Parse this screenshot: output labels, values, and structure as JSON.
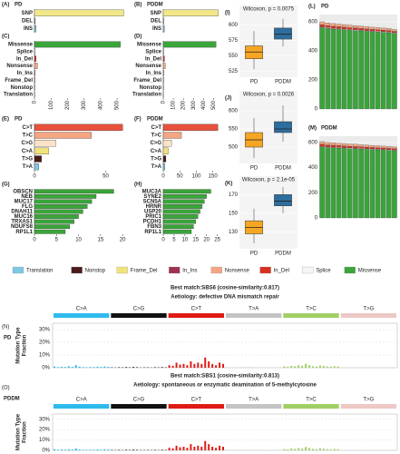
{
  "chart_data": [
    {
      "type": "hbar",
      "panel": "(A)",
      "title": "PD",
      "categories": [
        "SNP",
        "DEL",
        "INS"
      ],
      "values": [
        540,
        3,
        10
      ],
      "colors": [
        "#f2e88a",
        "#4a1c1c",
        "#7ec8e3"
      ],
      "xlim": [
        0,
        560
      ]
    },
    {
      "type": "hbar",
      "panel": "(B)",
      "title": "PDDM",
      "categories": [
        "SNP",
        "DEL",
        "INS"
      ],
      "values": [
        548,
        4,
        12
      ],
      "colors": [
        "#f2e88a",
        "#4a1c1c",
        "#7ec8e3"
      ],
      "xlim": [
        0,
        560
      ]
    },
    {
      "type": "hbar",
      "panel": "(C)",
      "categories": [
        "Missense",
        "Splice",
        "In_Del",
        "Nonsense",
        "In_Ins",
        "Frame_Del",
        "Nonstop",
        "Translation"
      ],
      "values": [
        520,
        5,
        10,
        18,
        3,
        4,
        2,
        1
      ],
      "colors": [
        "#3aa53a",
        "#f5f5f5",
        "#d7301f",
        "#f4a582",
        "#a03050",
        "#f2e27a",
        "#4a1c1c",
        "#7ec8e3"
      ],
      "xlim": [
        0,
        560
      ],
      "xticks": [
        0,
        100,
        200,
        300,
        400,
        500
      ]
    },
    {
      "type": "hbar",
      "panel": "(D)",
      "categories": [
        "Missense",
        "Splice",
        "In_Del",
        "Nonsense",
        "In_Ins",
        "Frame_Del",
        "Nonstop",
        "Translation"
      ],
      "values": [
        525,
        6,
        12,
        20,
        4,
        5,
        2,
        1
      ],
      "colors": [
        "#3aa53a",
        "#f5f5f5",
        "#d7301f",
        "#f4a582",
        "#a03050",
        "#f2e27a",
        "#4a1c1c",
        "#7ec8e3"
      ],
      "xlim": [
        0,
        560
      ],
      "xticks": [
        0,
        100,
        200,
        300,
        400,
        500
      ]
    },
    {
      "type": "hbar",
      "panel": "(E)",
      "title": "PD",
      "categories": [
        "C>T",
        "T>C",
        "C>G",
        "C>A",
        "T>G",
        "T>A"
      ],
      "values": [
        62,
        40,
        15,
        10,
        5,
        3
      ],
      "colors": [
        "#e8513c",
        "#f4a582",
        "#fbe3c8",
        "#f2e27a",
        "#4a1c1c",
        "#7ec8e3"
      ],
      "xlim": [
        0,
        65
      ],
      "xticks": [
        0,
        50
      ]
    },
    {
      "type": "hbar",
      "panel": "(F)",
      "title": "PDDM",
      "categories": [
        "C>T",
        "T>C",
        "C>G",
        "C>A",
        "T>G",
        "T>A"
      ],
      "values": [
        165,
        55,
        25,
        15,
        8,
        5
      ],
      "colors": [
        "#e8513c",
        "#f4a582",
        "#fbe3c8",
        "#f2e27a",
        "#4a1c1c",
        "#7ec8e3"
      ],
      "xlim": [
        0,
        170
      ],
      "xticks": [
        0,
        50,
        100,
        150
      ]
    },
    {
      "type": "hbar",
      "panel": "(G)",
      "categories": [
        "OBSCN",
        "NEB",
        "MUC17",
        "FLG",
        "DNAH11",
        "MUC16",
        "TRXAS1",
        "NDUFS8",
        "RP1L1"
      ],
      "values": [
        18,
        14,
        13,
        12,
        11,
        10,
        9,
        8,
        7
      ],
      "colors": [
        "#3aa53a",
        "#3aa53a",
        "#3aa53a",
        "#3aa53a",
        "#3aa53a",
        "#3aa53a",
        "#3aa53a",
        "#3aa53a",
        "#3aa53a"
      ],
      "xlim": [
        0,
        21
      ],
      "xticks": [
        0,
        5,
        10,
        15,
        20
      ]
    },
    {
      "type": "hbar",
      "panel": "(H)",
      "categories": [
        "MUC3A",
        "SYNE2",
        "SCN5A",
        "HRNR",
        "USP20",
        "PRIC1",
        "PCDH1",
        "FBN3",
        "RP1L1"
      ],
      "values": [
        22,
        20,
        19,
        18,
        17,
        16,
        15,
        14,
        13
      ],
      "colors": [
        "#3aa53a",
        "#3aa53a",
        "#3aa53a",
        "#3aa53a",
        "#3aa53a",
        "#3aa53a",
        "#3aa53a",
        "#3aa53a",
        "#3aa53a"
      ],
      "xlim": [
        0,
        26
      ],
      "xticks": [
        0,
        5,
        10,
        15,
        20,
        25
      ]
    },
    {
      "type": "box",
      "panel": "(I)",
      "annotation": "Wilcoxon, p = 0.0075",
      "groups": [
        "PD",
        "PDDM"
      ],
      "colors": [
        "#f6a623",
        "#2e6e9e"
      ],
      "boxes": [
        {
          "min": 528,
          "q1": 545,
          "median": 556,
          "q3": 566,
          "max": 590
        },
        {
          "min": 565,
          "q1": 577,
          "median": 585,
          "q3": 595,
          "max": 610
        }
      ],
      "ylim": [
        515,
        620
      ],
      "yticks": [
        525,
        550,
        575,
        600
      ]
    },
    {
      "type": "box",
      "panel": "(J)",
      "annotation": "Wilcoxon, p = 0.0026",
      "groups": [
        "PD",
        "PDDM"
      ],
      "colors": [
        "#f6a623",
        "#2e6e9e"
      ],
      "boxes": [
        {
          "min": 470,
          "q1": 500,
          "median": 520,
          "q3": 540,
          "max": 580
        },
        {
          "min": 515,
          "q1": 540,
          "median": 550,
          "q3": 570,
          "max": 615
        }
      ],
      "ylim": [
        455,
        635
      ],
      "yticks": [
        500,
        550,
        600
      ]
    },
    {
      "type": "box",
      "panel": "(K)",
      "annotation": "Wilcoxon, p = 2.1e-05",
      "groups": [
        "PD",
        "PDDM"
      ],
      "colors": [
        "#f6a623",
        "#2e6e9e"
      ],
      "boxes": [
        {
          "min": 118,
          "q1": 128,
          "median": 135,
          "q3": 142,
          "max": 155
        },
        {
          "min": 150,
          "q1": 158,
          "median": 163,
          "q3": 170,
          "max": 178
        }
      ],
      "ylim": [
        112,
        182
      ],
      "yticks": [
        130,
        150,
        170
      ]
    },
    {
      "type": "stacked",
      "panel": "(L)",
      "title": "PD",
      "ylim": [
        0,
        650
      ],
      "yticks": [
        0,
        200,
        400,
        600
      ],
      "series": [
        {
          "name": "Missense",
          "color": "#3aa53a",
          "values": [
            560,
            555,
            550,
            548,
            545,
            542,
            540,
            538,
            535,
            532,
            530,
            528,
            525,
            520
          ]
        },
        {
          "name": "Splice",
          "color": "#f5f5f5",
          "values": [
            5,
            5,
            5,
            5,
            5,
            5,
            5,
            5,
            5,
            5,
            5,
            5,
            5,
            5
          ]
        },
        {
          "name": "In_Del",
          "color": "#d7301f",
          "values": [
            15,
            14,
            14,
            13,
            13,
            12,
            12,
            12,
            11,
            11,
            10,
            10,
            10,
            9
          ]
        },
        {
          "name": "Nonsense",
          "color": "#f4a582",
          "values": [
            20,
            19,
            19,
            18,
            18,
            17,
            17,
            16,
            16,
            15,
            15,
            14,
            14,
            13
          ]
        }
      ]
    },
    {
      "type": "stacked",
      "panel": "(M)",
      "title": "PDDM",
      "ylim": [
        0,
        650
      ],
      "yticks": [
        0,
        200,
        400,
        600
      ],
      "series": [
        {
          "name": "Missense",
          "color": "#3aa53a",
          "values": [
            565,
            560,
            558,
            556,
            554,
            552,
            550,
            548,
            546,
            544,
            542,
            540,
            538,
            535
          ]
        },
        {
          "name": "Splice",
          "color": "#f5f5f5",
          "values": [
            5,
            5,
            5,
            5,
            5,
            5,
            5,
            5,
            5,
            5,
            5,
            5,
            5,
            5
          ]
        },
        {
          "name": "In_Del",
          "color": "#d7301f",
          "values": [
            16,
            15,
            15,
            14,
            14,
            13,
            13,
            12,
            12,
            12,
            11,
            11,
            10,
            10
          ]
        },
        {
          "name": "Nonsense",
          "color": "#f4a582",
          "values": [
            21,
            20,
            20,
            19,
            19,
            18,
            18,
            17,
            17,
            16,
            16,
            15,
            15,
            14
          ]
        }
      ]
    },
    {
      "type": "signature",
      "panel": "(N)",
      "title": "PD",
      "match": "Best match:SBS6 (cosine-similarity:0.817)",
      "aetiology": "Aetiology: defective DNA mismatch repair",
      "ylabel": [
        "Mutation Type",
        "Fraction"
      ],
      "ylim": [
        0,
        35
      ],
      "yticks": [
        {
          "value": 0,
          "label": "0%"
        },
        {
          "value": 10,
          "label": "10%"
        },
        {
          "value": 20,
          "label": "20%"
        },
        {
          "value": 30,
          "label": "30%"
        }
      ],
      "classes": [
        {
          "name": "C>A",
          "color": "#2ebaed",
          "values": [
            1,
            0.5,
            0.8,
            0.6,
            1.2,
            0.7,
            2,
            0.9,
            0.5,
            0.4,
            0.6,
            0.5,
            0.8,
            0.6,
            1,
            0.7
          ]
        },
        {
          "name": "C>G",
          "color": "#111111",
          "values": [
            0.3,
            0.2,
            0.4,
            0.3,
            0.5,
            0.3,
            0.6,
            0.4,
            0.2,
            0.3,
            0.3,
            0.2,
            0.4,
            0.3,
            0.5,
            0.3
          ]
        },
        {
          "name": "C>T",
          "color": "#de1c14",
          "values": [
            2,
            1.5,
            4,
            2.5,
            3,
            2,
            5,
            3,
            4,
            3,
            8,
            5,
            3,
            2,
            4,
            3
          ]
        },
        {
          "name": "T>A",
          "color": "#c4c4c4",
          "values": [
            0.3,
            0.2,
            0.3,
            0.2,
            0.4,
            0.3,
            0.5,
            0.3,
            0.2,
            0.2,
            0.3,
            0.2,
            0.3,
            0.2,
            0.3,
            0.2
          ]
        },
        {
          "name": "T>C",
          "color": "#a1cf64",
          "values": [
            1,
            0.8,
            1.5,
            1.2,
            2,
            1.5,
            3,
            2,
            1.2,
            1,
            1.8,
            1.5,
            1,
            0.8,
            1.2,
            1
          ]
        },
        {
          "name": "T>G",
          "color": "#edc8c5",
          "values": [
            0.2,
            0.1,
            0.2,
            0.1,
            0.3,
            0.2,
            0.3,
            0.2,
            0.1,
            0.1,
            0.2,
            0.1,
            0.2,
            0.1,
            0.2,
            0.1
          ]
        }
      ]
    },
    {
      "type": "signature",
      "panel": "(O)",
      "title": "PDDM",
      "match": "Best match:SBS1 (cosine-similarity:0.813)",
      "aetiology": "Aetiology: spontaneous or enzymatic deamination of 5-methylcytosine",
      "ylabel": [
        "Mutation Type",
        "Fraction"
      ],
      "ylim": [
        0,
        35
      ],
      "yticks": [
        {
          "value": 0,
          "label": "0%"
        },
        {
          "value": 10,
          "label": "10%"
        },
        {
          "value": 20,
          "label": "20%"
        },
        {
          "value": 30,
          "label": "30%"
        }
      ],
      "classes": [
        {
          "name": "C>A",
          "color": "#2ebaed",
          "values": [
            1.2,
            0.6,
            0.9,
            0.7,
            1,
            0.8,
            1.8,
            1,
            0.6,
            0.5,
            0.7,
            0.6,
            0.9,
            0.7,
            1.1,
            0.8
          ]
        },
        {
          "name": "C>G",
          "color": "#111111",
          "values": [
            0.4,
            0.3,
            0.5,
            0.3,
            0.6,
            0.4,
            0.7,
            0.5,
            0.3,
            0.3,
            0.4,
            0.3,
            0.5,
            0.3,
            0.6,
            0.4
          ]
        },
        {
          "name": "C>T",
          "color": "#de1c14",
          "values": [
            2.5,
            2,
            4.5,
            3,
            3.5,
            2.5,
            6,
            3.5,
            4.5,
            3.5,
            9,
            6,
            3.5,
            2.5,
            4.5,
            3.5
          ]
        },
        {
          "name": "T>A",
          "color": "#c4c4c4",
          "values": [
            0.3,
            0.2,
            0.4,
            0.2,
            0.4,
            0.3,
            0.5,
            0.3,
            0.2,
            0.2,
            0.3,
            0.2,
            0.3,
            0.2,
            0.4,
            0.2
          ]
        },
        {
          "name": "T>C",
          "color": "#a1cf64",
          "values": [
            1.2,
            0.9,
            1.8,
            1.4,
            2.2,
            1.7,
            3.2,
            2.2,
            1.4,
            1.1,
            2,
            1.6,
            1.2,
            0.9,
            1.4,
            1.1
          ]
        },
        {
          "name": "T>G",
          "color": "#edc8c5",
          "values": [
            0.2,
            0.1,
            0.2,
            0.1,
            0.3,
            0.2,
            0.3,
            0.2,
            0.1,
            0.1,
            0.2,
            0.1,
            0.2,
            0.1,
            0.2,
            0.1
          ]
        }
      ]
    }
  ],
  "legend": {
    "items": [
      {
        "name": "Translation",
        "color": "#7ec8e3"
      },
      {
        "name": "Nonstop",
        "color": "#4a1c1c"
      },
      {
        "name": "Frame_Del",
        "color": "#f2e27a"
      },
      {
        "name": "In_Ins",
        "color": "#a03050"
      },
      {
        "name": "Nonsense",
        "color": "#f4a582"
      },
      {
        "name": "In_Del",
        "color": "#d7301f"
      },
      {
        "name": "Splice",
        "color": "#f5f5f5"
      },
      {
        "name": "Missense",
        "color": "#3aa53a"
      }
    ]
  }
}
